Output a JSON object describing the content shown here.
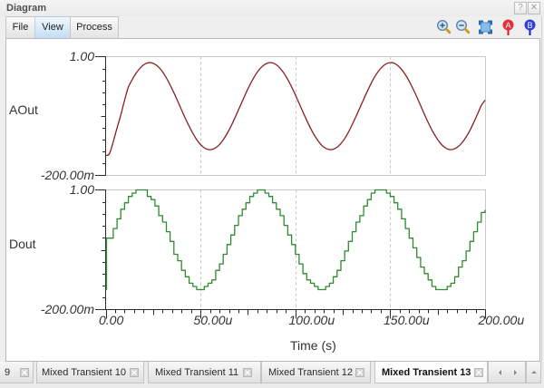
{
  "window": {
    "title": "Diagram",
    "help_button": "?",
    "close_button": "✕"
  },
  "menu": {
    "items": [
      {
        "label": "File"
      },
      {
        "label": "View",
        "selected": true
      },
      {
        "label": "Process"
      }
    ]
  },
  "toolbar": {
    "buttons": [
      {
        "icon": "zoom-in-icon"
      },
      {
        "icon": "zoom-out-icon"
      },
      {
        "icon": "zoom-fit-icon"
      },
      {
        "icon": "marker-a-icon",
        "label": "A",
        "color": "#e5303a"
      },
      {
        "icon": "marker-b-icon",
        "label": "B",
        "color": "#2d3fe0"
      }
    ]
  },
  "chart_data": {
    "type": "line",
    "title": "",
    "xlabel": "Time (s)",
    "x_unit": "us",
    "xlim": [
      0,
      200
    ],
    "x_ticks": {
      "values": [
        0,
        50,
        100,
        150,
        200
      ],
      "labels": [
        "0.00",
        "50.00u",
        "100.00u",
        "150.00u",
        "200.00u"
      ]
    },
    "grid": {
      "x": "dashed vertical at major ticks",
      "y": false
    },
    "legend": "none",
    "panels": [
      {
        "name": "AOut",
        "ylabel": "AOut",
        "ylim": [
          -0.2,
          1.0
        ],
        "y_tick_labels": {
          "top": "1.00",
          "bottom": "-200.00m"
        },
        "color": "#8a1f1f",
        "label_color": "#222222",
        "style": "line",
        "x": [
          0,
          2,
          4,
          6,
          8,
          10,
          12,
          14,
          16,
          18,
          20,
          22,
          24,
          26,
          28,
          30,
          32,
          34,
          36,
          38,
          40,
          42,
          44,
          46,
          48,
          50,
          52,
          54,
          56,
          58,
          60,
          62,
          64,
          66,
          68,
          70,
          72,
          74,
          76,
          78,
          80,
          82,
          84,
          86,
          88,
          90,
          92,
          94,
          96,
          98,
          100,
          102,
          104,
          106,
          108,
          110,
          112,
          114,
          116,
          118,
          120,
          122,
          124,
          126,
          128,
          130,
          132,
          134,
          136,
          138,
          140,
          142,
          144,
          146,
          148,
          150,
          152,
          154,
          156,
          158,
          160,
          162,
          164,
          166,
          168,
          170,
          172,
          174,
          176,
          178,
          180,
          182,
          184,
          186,
          188,
          190,
          192,
          194,
          196,
          198,
          200
        ],
        "y": [
          0.0,
          0.02,
          0.14,
          0.28,
          0.41,
          0.56,
          0.693,
          0.767,
          0.831,
          0.881,
          0.917,
          0.936,
          0.939,
          0.924,
          0.893,
          0.846,
          0.786,
          0.715,
          0.635,
          0.55,
          0.463,
          0.377,
          0.297,
          0.224,
          0.162,
          0.113,
          0.079,
          0.062,
          0.062,
          0.08,
          0.112,
          0.16,
          0.221,
          0.294,
          0.375,
          0.461,
          0.548,
          0.633,
          0.713,
          0.784,
          0.845,
          0.892,
          0.923,
          0.939,
          0.937,
          0.918,
          0.882,
          0.832,
          0.769,
          0.695,
          0.614,
          0.528,
          0.441,
          0.357,
          0.277,
          0.207,
          0.148,
          0.103,
          0.074,
          0.061,
          0.065,
          0.085,
          0.122,
          0.173,
          0.237,
          0.314,
          0.396,
          0.483,
          0.569,
          0.654,
          0.732,
          0.801,
          0.858,
          0.901,
          0.929,
          0.94,
          0.934,
          0.91,
          0.871,
          0.818,
          0.752,
          0.676,
          0.593,
          0.506,
          0.42,
          0.336,
          0.259,
          0.192,
          0.136,
          0.094,
          0.068,
          0.06,
          0.069,
          0.094,
          0.134,
          0.188,
          0.255,
          0.333,
          0.418,
          0.504,
          0.56
        ]
      },
      {
        "name": "Dout",
        "ylabel": "Dout",
        "ylim": [
          -0.2,
          1.0
        ],
        "y_tick_labels": {
          "top": "1.00",
          "bottom": "-200.00m"
        },
        "color": "#2e8b2e",
        "label_color": "#3a9a3a",
        "style": "step",
        "x": [
          0,
          0.5,
          2,
          4,
          6,
          8,
          10,
          12,
          14,
          16,
          18,
          20,
          22,
          24,
          26,
          28,
          30,
          32,
          34,
          36,
          38,
          40,
          42,
          44,
          46,
          48,
          50,
          52,
          54,
          56,
          58,
          60,
          62,
          64,
          66,
          68,
          70,
          72,
          74,
          76,
          78,
          80,
          82,
          84,
          86,
          88,
          90,
          92,
          94,
          96,
          98,
          100,
          102,
          104,
          106,
          108,
          110,
          112,
          114,
          116,
          118,
          120,
          122,
          124,
          126,
          128,
          130,
          132,
          134,
          136,
          138,
          140,
          142,
          144,
          146,
          148,
          150,
          152,
          154,
          156,
          158,
          160,
          162,
          164,
          166,
          168,
          170,
          172,
          174,
          176,
          178,
          180,
          182,
          184,
          186,
          188,
          190,
          192,
          194,
          196,
          198,
          200
        ],
        "y": [
          0.0,
          0.516,
          0.516,
          0.613,
          0.71,
          0.806,
          0.871,
          0.935,
          0.968,
          1.0,
          1.0,
          1.0,
          0.935,
          0.903,
          0.839,
          0.742,
          0.677,
          0.581,
          0.484,
          0.355,
          0.29,
          0.194,
          0.129,
          0.065,
          0.032,
          0.0,
          0.0,
          0.032,
          0.065,
          0.097,
          0.194,
          0.258,
          0.355,
          0.452,
          0.548,
          0.645,
          0.742,
          0.806,
          0.871,
          0.935,
          0.968,
          1.0,
          1.0,
          0.968,
          0.935,
          0.871,
          0.806,
          0.742,
          0.645,
          0.548,
          0.452,
          0.355,
          0.258,
          0.161,
          0.097,
          0.065,
          0.032,
          0.0,
          0.0,
          0.032,
          0.065,
          0.129,
          0.194,
          0.29,
          0.387,
          0.484,
          0.581,
          0.677,
          0.742,
          0.839,
          0.903,
          0.968,
          1.0,
          1.0,
          1.0,
          0.968,
          0.935,
          0.871,
          0.806,
          0.71,
          0.613,
          0.516,
          0.419,
          0.323,
          0.226,
          0.161,
          0.097,
          0.032,
          0.0,
          0.0,
          0.0,
          0.032,
          0.065,
          0.129,
          0.226,
          0.29,
          0.387,
          0.484,
          0.581,
          0.677,
          0.774,
          0.8
        ]
      }
    ]
  },
  "tabs": {
    "items": [
      {
        "label": "9"
      },
      {
        "label": "Mixed Transient 10"
      },
      {
        "label": "Mixed Transient 11"
      },
      {
        "label": "Mixed Transient 12"
      },
      {
        "label": "Mixed Transient 13",
        "active": true
      }
    ],
    "active_index": 4
  }
}
